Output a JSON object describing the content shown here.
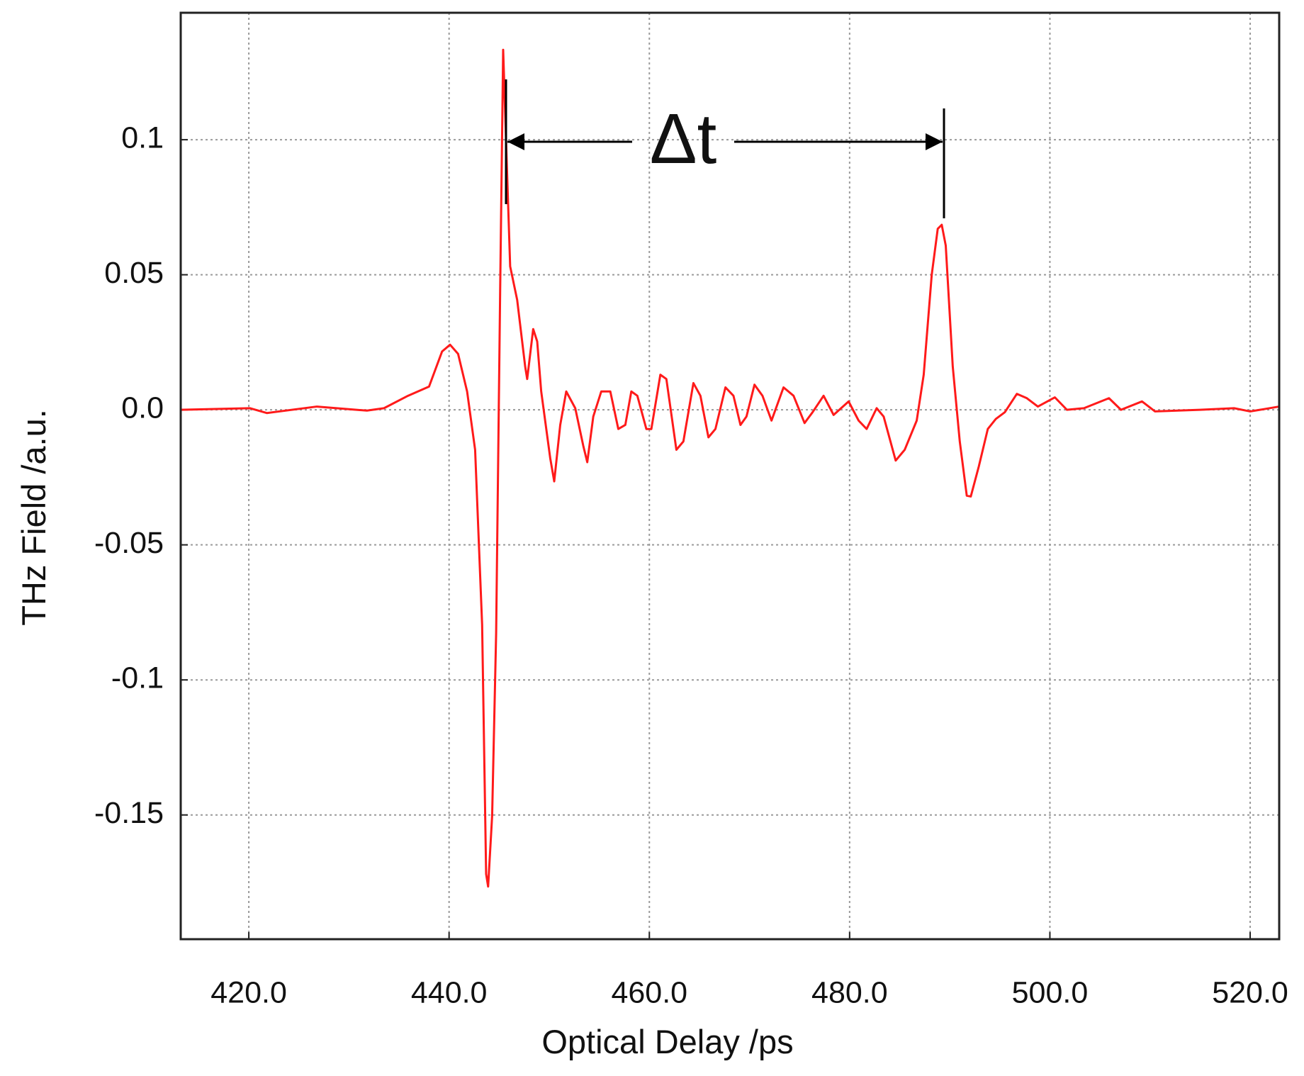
{
  "chart_data": {
    "type": "line",
    "x_label": "Optical Delay /ps",
    "y_label": "THz Field /a.u.",
    "annotation": "Δt",
    "color": "#ff1a1a",
    "grid": true,
    "xlim": [
      413.2,
      522.9
    ],
    "ylim": [
      -0.196,
      0.147
    ],
    "xticks": [
      {
        "value": 420,
        "label": "420.0"
      },
      {
        "value": 440,
        "label": "440.0"
      },
      {
        "value": 460,
        "label": "460.0"
      },
      {
        "value": 480,
        "label": "480.0"
      },
      {
        "value": 500,
        "label": "500.0"
      },
      {
        "value": 520,
        "label": "520.0"
      }
    ],
    "yticks": [
      0.1,
      0.05,
      {
        "value": 0,
        "label": "0.0"
      },
      -0.05,
      -0.1,
      -0.15
    ],
    "x": [
      413.2,
      420.1,
      421.8,
      426.8,
      431.8,
      433.5,
      435.9,
      438.0,
      439.3,
      440.1,
      440.9,
      441.8,
      442.6,
      443.3,
      443.7,
      443.9,
      444.3,
      444.7,
      445.1,
      445.4,
      445.8,
      446.1,
      446.8,
      447.6,
      447.8,
      448.4,
      448.8,
      449.2,
      450.1,
      450.5,
      451.1,
      451.7,
      452.6,
      453.4,
      453.8,
      454.4,
      455.2,
      456.1,
      456.9,
      457.6,
      458.2,
      458.8,
      459.7,
      460.2,
      461.1,
      461.7,
      462.7,
      463.4,
      464.4,
      465.1,
      465.9,
      466.6,
      467.6,
      468.4,
      469.1,
      469.7,
      470.5,
      471.3,
      472.2,
      473.4,
      474.4,
      475.5,
      476.3,
      477.4,
      478.4,
      479.9,
      480.9,
      481.7,
      482.7,
      483.4,
      484.6,
      485.5,
      486.7,
      487.4,
      488.2,
      488.8,
      489.2,
      489.6,
      490.3,
      491.0,
      491.7,
      492.1,
      492.9,
      493.8,
      494.6,
      495.5,
      496.7,
      497.7,
      498.8,
      500.5,
      501.7,
      503.4,
      505.9,
      507.1,
      509.2,
      510.5,
      515.0,
      518.4,
      520.0,
      522.9
    ],
    "values": [
      0,
      0.0006,
      -0.0012,
      0.0012,
      -0.0003,
      0.0006,
      0.0052,
      0.0086,
      0.0216,
      0.0241,
      0.0207,
      0.0068,
      -0.0148,
      -0.0796,
      -0.1719,
      -0.1765,
      -0.1503,
      -0.0827,
      0.0438,
      0.1333,
      0.087,
      0.0531,
      0.0407,
      0.016,
      0.0114,
      0.0299,
      0.0253,
      0.0068,
      -0.0179,
      -0.0265,
      -0.0056,
      0.0068,
      0.0006,
      -0.0133,
      -0.0194,
      -0.0025,
      0.0068,
      0.0068,
      -0.0071,
      -0.0056,
      0.0068,
      0.0052,
      -0.0071,
      -0.0071,
      0.013,
      0.0114,
      -0.0148,
      -0.0117,
      0.0099,
      0.0052,
      -0.0102,
      -0.0071,
      0.0083,
      0.0052,
      -0.0056,
      -0.0025,
      0.0093,
      0.0052,
      -0.004,
      0.0083,
      0.0052,
      -0.0049,
      -0.0009,
      0.0052,
      -0.0019,
      0.0031,
      -0.004,
      -0.0071,
      0.0006,
      -0.0025,
      -0.0188,
      -0.0148,
      -0.004,
      0.013,
      0.05,
      0.067,
      0.0685,
      0.0608,
      0.016,
      -0.0117,
      -0.0318,
      -0.0321,
      -0.021,
      -0.0071,
      -0.0034,
      -0.0009,
      0.0059,
      0.0043,
      0.0012,
      0.0046,
      0,
      0.0006,
      0.0043,
      0,
      0.0031,
      -0.0006,
      0,
      0.0006,
      -0.0006,
      0.0012
    ]
  }
}
